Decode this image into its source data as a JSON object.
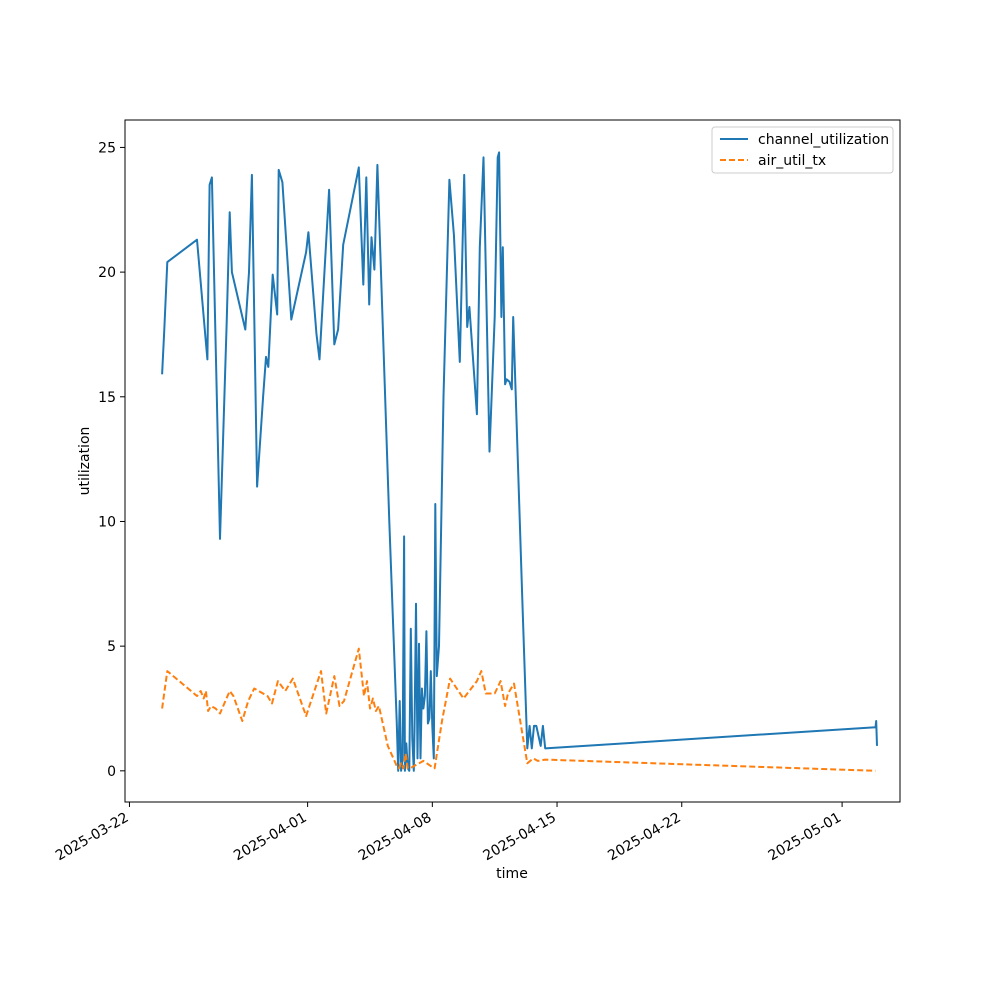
{
  "chart_data": {
    "type": "line",
    "title": "",
    "xlabel": "time",
    "ylabel": "utilization",
    "xlim": [
      "2025-03-21T18:00",
      "2025-05-04T06:00"
    ],
    "ylim": [
      -1.25,
      26.1
    ],
    "x_ticks": [
      "2025-03-22",
      "2025-04-01",
      "2025-04-08",
      "2025-04-15",
      "2025-04-22",
      "2025-05-01"
    ],
    "y_ticks": [
      0,
      5,
      10,
      15,
      20,
      25
    ],
    "grid": false,
    "legend_position": "top-right",
    "colors": {
      "channel_utilization": "#1f77b4",
      "air_util_tx": "#ff7f0e"
    },
    "series": [
      {
        "name": "channel_utilization",
        "style": "solid",
        "points": [
          [
            "2025-03-23T20:00",
            15.9
          ],
          [
            "2025-03-23T23:00",
            17.7
          ],
          [
            "2025-03-24T03:00",
            20.4
          ],
          [
            "2025-03-25T19:00",
            21.3
          ],
          [
            "2025-03-26T06:00",
            17.5
          ],
          [
            "2025-03-26T09:00",
            16.5
          ],
          [
            "2025-03-26T12:00",
            23.5
          ],
          [
            "2025-03-26T15:00",
            23.8
          ],
          [
            "2025-03-27T02:00",
            9.3
          ],
          [
            "2025-03-27T11:00",
            18.0
          ],
          [
            "2025-03-27T15:00",
            22.4
          ],
          [
            "2025-03-27T18:00",
            20.0
          ],
          [
            "2025-03-28T12:00",
            17.7
          ],
          [
            "2025-03-28T17:00",
            20.0
          ],
          [
            "2025-03-28T21:00",
            23.9
          ],
          [
            "2025-03-29T04:00",
            11.4
          ],
          [
            "2025-03-29T12:00",
            15.0
          ],
          [
            "2025-03-29T16:00",
            16.6
          ],
          [
            "2025-03-29T19:00",
            16.2
          ],
          [
            "2025-03-30T01:00",
            19.9
          ],
          [
            "2025-03-30T07:00",
            18.3
          ],
          [
            "2025-03-30T09:00",
            24.1
          ],
          [
            "2025-03-30T14:00",
            23.6
          ],
          [
            "2025-03-31T02:00",
            18.1
          ],
          [
            "2025-03-31T22:00",
            20.8
          ],
          [
            "2025-04-01T01:00",
            21.6
          ],
          [
            "2025-04-01T12:00",
            17.5
          ],
          [
            "2025-04-01T16:00",
            16.5
          ],
          [
            "2025-04-02T05:00",
            23.3
          ],
          [
            "2025-04-02T12:00",
            17.1
          ],
          [
            "2025-04-02T17:00",
            17.7
          ],
          [
            "2025-04-03T00:00",
            21.1
          ],
          [
            "2025-04-03T21:00",
            24.2
          ],
          [
            "2025-04-04T03:00",
            19.5
          ],
          [
            "2025-04-04T07:00",
            23.8
          ],
          [
            "2025-04-04T11:00",
            18.7
          ],
          [
            "2025-04-04T14:00",
            21.4
          ],
          [
            "2025-04-04T18:00",
            20.1
          ],
          [
            "2025-04-04T22:00",
            24.3
          ],
          [
            "2025-04-05T14:00",
            10.0
          ],
          [
            "2025-04-06T00:00",
            2.0
          ],
          [
            "2025-04-06T02:00",
            0.0
          ],
          [
            "2025-04-06T04:00",
            2.8
          ],
          [
            "2025-04-06T06:00",
            0.0
          ],
          [
            "2025-04-06T08:00",
            0.5
          ],
          [
            "2025-04-06T10:00",
            9.4
          ],
          [
            "2025-04-06T11:00",
            0.0
          ],
          [
            "2025-04-06T13:00",
            1.1
          ],
          [
            "2025-04-06T15:00",
            0.1
          ],
          [
            "2025-04-06T17:00",
            0.0
          ],
          [
            "2025-04-06T19:00",
            5.7
          ],
          [
            "2025-04-06T21:00",
            1.3
          ],
          [
            "2025-04-06T23:00",
            0.0
          ],
          [
            "2025-04-07T00:00",
            1.6
          ],
          [
            "2025-04-07T02:00",
            6.7
          ],
          [
            "2025-04-07T04:00",
            0.5
          ],
          [
            "2025-04-07T06:00",
            5.1
          ],
          [
            "2025-04-07T08:00",
            0.5
          ],
          [
            "2025-04-07T10:00",
            3.3
          ],
          [
            "2025-04-07T12:00",
            2.5
          ],
          [
            "2025-04-07T14:00",
            3.0
          ],
          [
            "2025-04-07T16:00",
            5.6
          ],
          [
            "2025-04-07T18:00",
            1.9
          ],
          [
            "2025-04-07T20:00",
            2.1
          ],
          [
            "2025-04-07T22:00",
            4.0
          ],
          [
            "2025-04-08T00:00",
            1.8
          ],
          [
            "2025-04-08T02:00",
            0.5
          ],
          [
            "2025-04-08T04:00",
            10.7
          ],
          [
            "2025-04-08T06:00",
            3.8
          ],
          [
            "2025-04-08T09:00",
            5.0
          ],
          [
            "2025-04-08T15:00",
            15.0
          ],
          [
            "2025-04-08T23:00",
            23.7
          ],
          [
            "2025-04-09T05:00",
            21.5
          ],
          [
            "2025-04-09T13:00",
            16.4
          ],
          [
            "2025-04-09T19:00",
            23.9
          ],
          [
            "2025-04-09T23:00",
            17.8
          ],
          [
            "2025-04-10T02:00",
            18.6
          ],
          [
            "2025-04-10T12:00",
            14.3
          ],
          [
            "2025-04-10T16:00",
            21.0
          ],
          [
            "2025-04-10T21:00",
            24.6
          ],
          [
            "2025-04-11T05:00",
            12.8
          ],
          [
            "2025-04-11T12:00",
            18.2
          ],
          [
            "2025-04-11T16:00",
            24.6
          ],
          [
            "2025-04-11T18:00",
            24.8
          ],
          [
            "2025-04-11T21:00",
            18.2
          ],
          [
            "2025-04-11T23:00",
            21.0
          ],
          [
            "2025-04-12T02:00",
            15.5
          ],
          [
            "2025-04-12T04:00",
            15.7
          ],
          [
            "2025-04-12T08:00",
            15.6
          ],
          [
            "2025-04-12T11:00",
            15.3
          ],
          [
            "2025-04-12T13:00",
            18.2
          ],
          [
            "2025-04-13T01:00",
            7.0
          ],
          [
            "2025-04-13T08:00",
            0.9
          ],
          [
            "2025-04-13T11:00",
            1.8
          ],
          [
            "2025-04-13T14:00",
            0.9
          ],
          [
            "2025-04-13T17:00",
            1.8
          ],
          [
            "2025-04-13T20:00",
            1.8
          ],
          [
            "2025-04-14T02:00",
            1.0
          ],
          [
            "2025-04-14T05:00",
            1.8
          ],
          [
            "2025-04-14T08:00",
            0.9
          ],
          [
            "2025-05-02T21:00",
            1.75
          ],
          [
            "2025-05-02T22:00",
            2.0
          ],
          [
            "2025-05-02T23:00",
            1.0
          ]
        ]
      },
      {
        "name": "air_util_tx",
        "style": "dashed",
        "points": [
          [
            "2025-03-23T20:00",
            2.5
          ],
          [
            "2025-03-24T03:00",
            4.0
          ],
          [
            "2025-03-25T19:00",
            3.0
          ],
          [
            "2025-03-26T00:00",
            3.2
          ],
          [
            "2025-03-26T04:00",
            2.9
          ],
          [
            "2025-03-26T07:00",
            3.2
          ],
          [
            "2025-03-26T10:00",
            2.4
          ],
          [
            "2025-03-26T14:00",
            2.6
          ],
          [
            "2025-03-26T20:00",
            2.5
          ],
          [
            "2025-03-27T02:00",
            2.3
          ],
          [
            "2025-03-27T15:00",
            3.2
          ],
          [
            "2025-03-27T20:00",
            3.0
          ],
          [
            "2025-03-28T08:00",
            2.0
          ],
          [
            "2025-03-28T16:00",
            2.8
          ],
          [
            "2025-03-29T00:00",
            3.3
          ],
          [
            "2025-03-29T12:00",
            3.1
          ],
          [
            "2025-03-29T18:00",
            3.0
          ],
          [
            "2025-03-30T00:00",
            2.7
          ],
          [
            "2025-03-30T08:00",
            3.6
          ],
          [
            "2025-03-30T18:00",
            3.2
          ],
          [
            "2025-03-31T04:00",
            3.7
          ],
          [
            "2025-03-31T22:00",
            2.2
          ],
          [
            "2025-04-01T18:00",
            4.0
          ],
          [
            "2025-04-02T01:00",
            2.3
          ],
          [
            "2025-04-02T12:00",
            3.8
          ],
          [
            "2025-04-02T19:00",
            2.6
          ],
          [
            "2025-04-03T01:00",
            2.8
          ],
          [
            "2025-04-03T21:00",
            4.9
          ],
          [
            "2025-04-04T04:00",
            3.0
          ],
          [
            "2025-04-04T08:00",
            3.6
          ],
          [
            "2025-04-04T12:00",
            2.5
          ],
          [
            "2025-04-04T16:00",
            2.9
          ],
          [
            "2025-04-04T20:00",
            2.4
          ],
          [
            "2025-04-05T00:00",
            2.6
          ],
          [
            "2025-04-05T12:00",
            1.0
          ],
          [
            "2025-04-06T00:00",
            0.2
          ],
          [
            "2025-04-06T03:00",
            0.1
          ],
          [
            "2025-04-06T06:00",
            0.3
          ],
          [
            "2025-04-06T09:00",
            0.1
          ],
          [
            "2025-04-06T12:00",
            0.7
          ],
          [
            "2025-04-06T15:00",
            0.1
          ],
          [
            "2025-04-06T18:00",
            0.1
          ],
          [
            "2025-04-07T00:00",
            0.2
          ],
          [
            "2025-04-07T12:00",
            0.4
          ],
          [
            "2025-04-08T00:00",
            0.15
          ],
          [
            "2025-04-08T03:00",
            0.1
          ],
          [
            "2025-04-08T13:00",
            2.0
          ],
          [
            "2025-04-09T00:00",
            3.7
          ],
          [
            "2025-04-09T18:00",
            2.9
          ],
          [
            "2025-04-10T12:00",
            3.6
          ],
          [
            "2025-04-10T18:00",
            4.0
          ],
          [
            "2025-04-11T00:00",
            3.1
          ],
          [
            "2025-04-11T12:00",
            3.1
          ],
          [
            "2025-04-11T20:00",
            3.6
          ],
          [
            "2025-04-12T02:00",
            2.6
          ],
          [
            "2025-04-12T06:00",
            3.1
          ],
          [
            "2025-04-12T14:00",
            3.5
          ],
          [
            "2025-04-13T08:00",
            0.3
          ],
          [
            "2025-04-13T16:00",
            0.5
          ],
          [
            "2025-04-13T22:00",
            0.4
          ],
          [
            "2025-04-14T08:00",
            0.45
          ],
          [
            "2025-05-02T21:00",
            0.0
          ]
        ]
      }
    ]
  }
}
